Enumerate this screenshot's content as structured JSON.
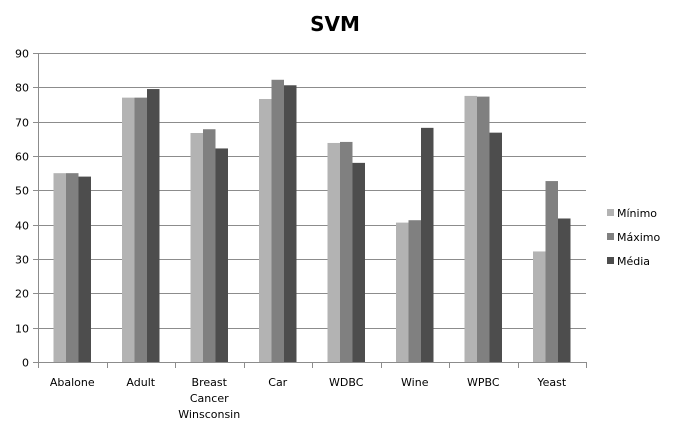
{
  "chart_data": {
    "type": "bar",
    "title": "SVM",
    "xlabel": "",
    "ylabel": "",
    "ylim": [
      0,
      90
    ],
    "yticks": [
      0,
      10,
      20,
      30,
      40,
      50,
      60,
      70,
      80,
      90
    ],
    "grid": true,
    "legend_position": "right",
    "categories": [
      [
        "Abalone"
      ],
      [
        "Adult"
      ],
      [
        "Breast",
        "Cancer",
        "Winsconsin"
      ],
      [
        "Car"
      ],
      [
        "WDBC"
      ],
      [
        "Wine"
      ],
      [
        "WPBC"
      ],
      [
        "Yeast"
      ]
    ],
    "series": [
      {
        "name": "Mínimo",
        "color": "#b3b3b3",
        "values": [
          55,
          77,
          66.7,
          76.6,
          63.8,
          40.6,
          77.5,
          32.2
        ]
      },
      {
        "name": "Máximo",
        "color": "#808080",
        "values": [
          55,
          77,
          67.8,
          82.2,
          64.1,
          41.3,
          77.3,
          52.7
        ]
      },
      {
        "name": "Média",
        "color": "#4d4d4d",
        "values": [
          54,
          79.5,
          62.2,
          80.6,
          58,
          68.2,
          66.8,
          41.8
        ]
      }
    ]
  }
}
